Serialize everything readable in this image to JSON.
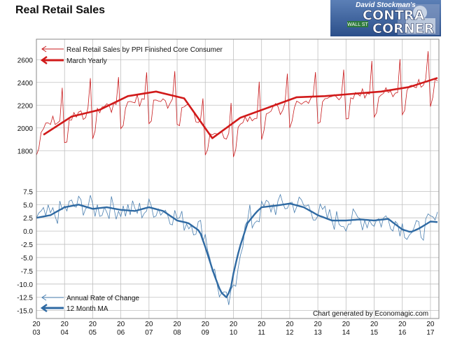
{
  "title": "Real Retail Sales",
  "logo": {
    "line1": "David Stockman's",
    "line2": "CONTRA",
    "line3": "CORNER",
    "sign": "WALL ST"
  },
  "credit": "Chart generated by Economagic.com",
  "colors": {
    "top_monthly": "#c8191b",
    "top_yearly": "#d11a1a",
    "bottom_monthly": "#4a7fb0",
    "bottom_ma": "#2f6aa3",
    "grid": "#c0c0c0"
  },
  "chart_data": [
    {
      "type": "line",
      "title": "",
      "x_ticks": [
        "2003",
        "2004",
        "2005",
        "2006",
        "2007",
        "2008",
        "2009",
        "2010",
        "2011",
        "2012",
        "2013",
        "2014",
        "2015",
        "2016",
        "2017"
      ],
      "x_tick_labels": [
        [
          "20",
          "03"
        ],
        [
          "20",
          "04"
        ],
        [
          "20",
          "05"
        ],
        [
          "20",
          "06"
        ],
        [
          "20",
          "07"
        ],
        [
          "20",
          "08"
        ],
        [
          "20",
          "09"
        ],
        [
          "20",
          "10"
        ],
        [
          "20",
          "11"
        ],
        [
          "20",
          "12"
        ],
        [
          "20",
          "13"
        ],
        [
          "20",
          "14"
        ],
        [
          "20",
          "15"
        ],
        [
          "20",
          "16"
        ],
        [
          "20",
          "17"
        ]
      ],
      "y_ticks": [
        "1800",
        "2000",
        "2200",
        "2400",
        "2600"
      ],
      "ylim": [
        1660,
        2780
      ],
      "xlim": [
        2003.0,
        2017.3
      ],
      "grid": true,
      "legend_position": "top-left",
      "series": [
        {
          "name": "Real Retail Sales by PPI Finished Core Consumer",
          "style": "thin-line-monthly",
          "anchors": [
            [
              2003.0,
              1950
            ],
            [
              2003.25,
              1990
            ],
            [
              2004.0,
              2050
            ],
            [
              2005.0,
              2120
            ],
            [
              2006.0,
              2180
            ],
            [
              2007.0,
              2220
            ],
            [
              2007.9,
              2200
            ],
            [
              2008.4,
              2150
            ],
            [
              2008.9,
              2000
            ],
            [
              2009.3,
              1870
            ],
            [
              2009.8,
              1920
            ],
            [
              2010.5,
              2040
            ],
            [
              2011.3,
              2120
            ],
            [
              2012.0,
              2180
            ],
            [
              2013.0,
              2230
            ],
            [
              2014.0,
              2260
            ],
            [
              2015.0,
              2270
            ],
            [
              2016.0,
              2310
            ],
            [
              2016.5,
              2330
            ],
            [
              2017.0,
              2380
            ],
            [
              2017.25,
              2400
            ]
          ],
          "seasonal_note": "December spikes near 2400-2760; January/February dips near 1750-2120"
        },
        {
          "name": "March Yearly",
          "style": "thick-line",
          "points": [
            [
              2003.25,
              1940
            ],
            [
              2004.25,
              2100
            ],
            [
              2005.25,
              2160
            ],
            [
              2006.25,
              2280
            ],
            [
              2007.25,
              2320
            ],
            [
              2008.25,
              2260
            ],
            [
              2009.25,
              1910
            ],
            [
              2010.25,
              2090
            ],
            [
              2011.25,
              2180
            ],
            [
              2012.25,
              2270
            ],
            [
              2013.25,
              2280
            ],
            [
              2014.25,
              2300
            ],
            [
              2015.25,
              2320
            ],
            [
              2016.25,
              2360
            ],
            [
              2017.25,
              2440
            ]
          ]
        }
      ]
    },
    {
      "type": "line",
      "title": "",
      "x_ticks": [
        "2003",
        "2004",
        "2005",
        "2006",
        "2007",
        "2008",
        "2009",
        "2010",
        "2011",
        "2012",
        "2013",
        "2014",
        "2015",
        "2016",
        "2017"
      ],
      "y_ticks": [
        "-15.0",
        "-12.5",
        "-10.0",
        "-7.5",
        "-5.0",
        "-2.5",
        "0.0",
        "2.5",
        "5.0",
        "7.5"
      ],
      "ylim": [
        -16.5,
        9.0
      ],
      "xlim": [
        2003.0,
        2017.3
      ],
      "grid": true,
      "legend_position": "bottom-left",
      "series": [
        {
          "name": "12 Month MA",
          "style": "thick-line",
          "points": [
            [
              2003.0,
              2.5
            ],
            [
              2003.5,
              3.0
            ],
            [
              2004.0,
              4.5
            ],
            [
              2004.5,
              5.0
            ],
            [
              2005.0,
              4.2
            ],
            [
              2005.5,
              4.5
            ],
            [
              2006.0,
              4.0
            ],
            [
              2006.5,
              3.8
            ],
            [
              2007.0,
              4.5
            ],
            [
              2007.5,
              3.8
            ],
            [
              2008.0,
              2.0
            ],
            [
              2008.4,
              1.5
            ],
            [
              2008.8,
              0.0
            ],
            [
              2009.0,
              -3.0
            ],
            [
              2009.3,
              -8.0
            ],
            [
              2009.55,
              -11.5
            ],
            [
              2009.75,
              -12.5
            ],
            [
              2009.9,
              -11.0
            ],
            [
              2010.0,
              -8.0
            ],
            [
              2010.2,
              -3.5
            ],
            [
              2010.5,
              1.5
            ],
            [
              2010.8,
              3.5
            ],
            [
              2011.0,
              4.5
            ],
            [
              2011.5,
              4.8
            ],
            [
              2012.0,
              5.2
            ],
            [
              2012.5,
              4.5
            ],
            [
              2013.0,
              3.0
            ],
            [
              2013.5,
              2.0
            ],
            [
              2014.0,
              2.0
            ],
            [
              2014.5,
              2.2
            ],
            [
              2015.0,
              2.0
            ],
            [
              2015.5,
              2.3
            ],
            [
              2016.0,
              0.3
            ],
            [
              2016.3,
              -0.2
            ],
            [
              2016.6,
              0.5
            ],
            [
              2017.0,
              1.8
            ],
            [
              2017.25,
              1.7
            ]
          ]
        },
        {
          "name": "Annual Rate of Change",
          "style": "thin-line-monthly",
          "noise_amplitude": 1.6
        }
      ]
    }
  ]
}
